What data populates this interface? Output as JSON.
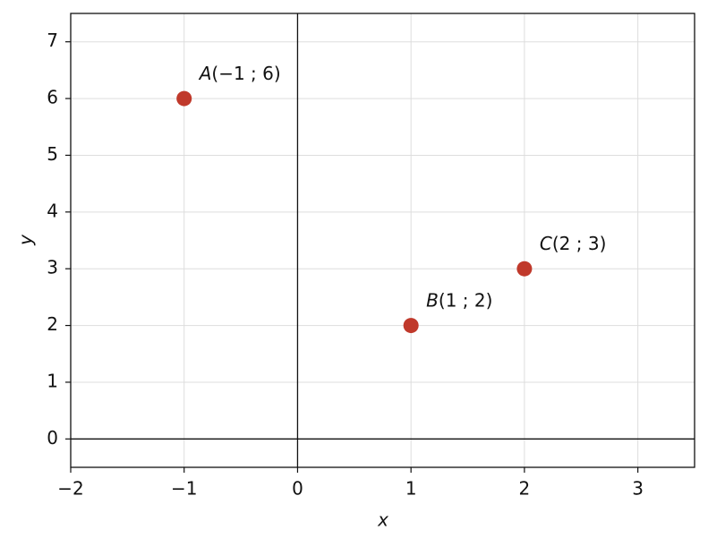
{
  "chart_data": {
    "type": "scatter",
    "x_label": "x",
    "y_label": "y",
    "x": [
      -1,
      1,
      2
    ],
    "values": [
      6,
      2,
      3
    ],
    "point_labels": [
      "A(−1 ; 6)",
      "B(1 ; 2)",
      "C(2 ; 3)"
    ],
    "color": "#c0392b",
    "xlim": [
      -2,
      3.5
    ],
    "ylim": [
      -0.5,
      7.5
    ],
    "xticks": [
      {
        "value": -2,
        "label": "−2"
      },
      {
        "value": -1,
        "label": "−1"
      },
      0,
      1,
      2,
      3
    ],
    "yticks": [
      0,
      1,
      2,
      3,
      4,
      5,
      6,
      7
    ],
    "grid": true,
    "zero_lines": true
  }
}
